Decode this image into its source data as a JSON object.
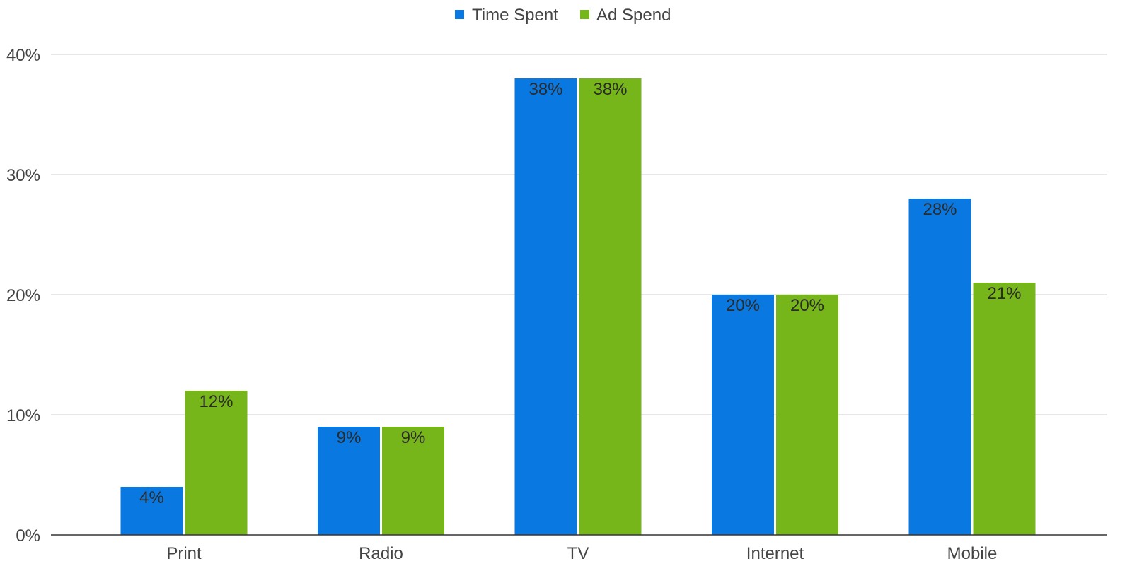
{
  "chart_data": {
    "type": "bar",
    "title": "",
    "xlabel": "",
    "ylabel": "",
    "categories": [
      "Print",
      "Radio",
      "TV",
      "Internet",
      "Mobile"
    ],
    "series": [
      {
        "name": "Time Spent",
        "color": "#0a78e1",
        "values": [
          4,
          9,
          38,
          20,
          28
        ],
        "labels": [
          "4%",
          "9%",
          "38%",
          "20%",
          "28%"
        ]
      },
      {
        "name": "Ad Spend",
        "color": "#77b61b",
        "values": [
          12,
          9,
          38,
          20,
          21
        ],
        "labels": [
          "12%",
          "9%",
          "38%",
          "20%",
          "21%"
        ]
      }
    ],
    "ylim": [
      0,
      40
    ],
    "yticks": [
      0,
      10,
      20,
      30,
      40
    ],
    "ytick_labels": [
      "0%",
      "10%",
      "20%",
      "30%",
      "40%"
    ],
    "grid": true,
    "legend_position": "top-center",
    "data_labels": true
  }
}
